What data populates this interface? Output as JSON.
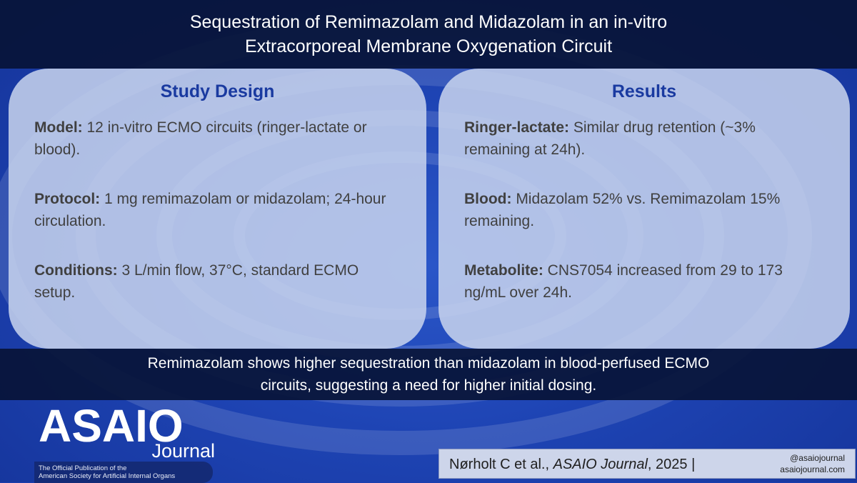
{
  "header": {
    "title_line1": "Sequestration of Remimazolam and Midazolam in an in-vitro",
    "title_line2": "Extracorporeal Membrane Oxygenation Circuit"
  },
  "study_design": {
    "heading": "Study Design",
    "items": [
      {
        "label": "Model:",
        "text": " 12 in-vitro ECMO circuits (ringer-lactate or blood)."
      },
      {
        "label": "Protocol:",
        "text": " 1 mg remimazolam or midazolam; 24-hour circulation."
      },
      {
        "label": "Conditions:",
        "text": " 3 L/min flow, 37°C, standard ECMO setup."
      }
    ]
  },
  "results": {
    "heading": "Results",
    "items": [
      {
        "label": "Ringer-lactate:",
        "text": " Similar drug retention (~3% remaining at 24h)."
      },
      {
        "label": "Blood:",
        "text": " Midazolam 52% vs. Remimazolam 15% remaining."
      },
      {
        "label": "Metabolite:",
        "text": " CNS7054 increased from 29 to 173 ng/mL over 24h."
      }
    ]
  },
  "conclusion": {
    "line1": "Remimazolam shows higher sequestration than midazolam in blood-perfused ECMO",
    "line2": "circuits, suggesting a need for higher initial dosing."
  },
  "logo": {
    "main": "ASAIO",
    "sub": "Journal",
    "tag_line1": "The Official Publication of the",
    "tag_line2": "American Society for Artificial Internal Organs"
  },
  "citation": {
    "authors": "Nørholt C et al., ",
    "journal": "ASAIO Journal",
    "year": ", 2025 |",
    "handle": "@asaiojournal",
    "site": "asaiojournal.com"
  },
  "colors": {
    "background": "#1e44b4",
    "banner": "#081437",
    "card": "#c8d4ee",
    "heading": "#1a3aa0"
  }
}
